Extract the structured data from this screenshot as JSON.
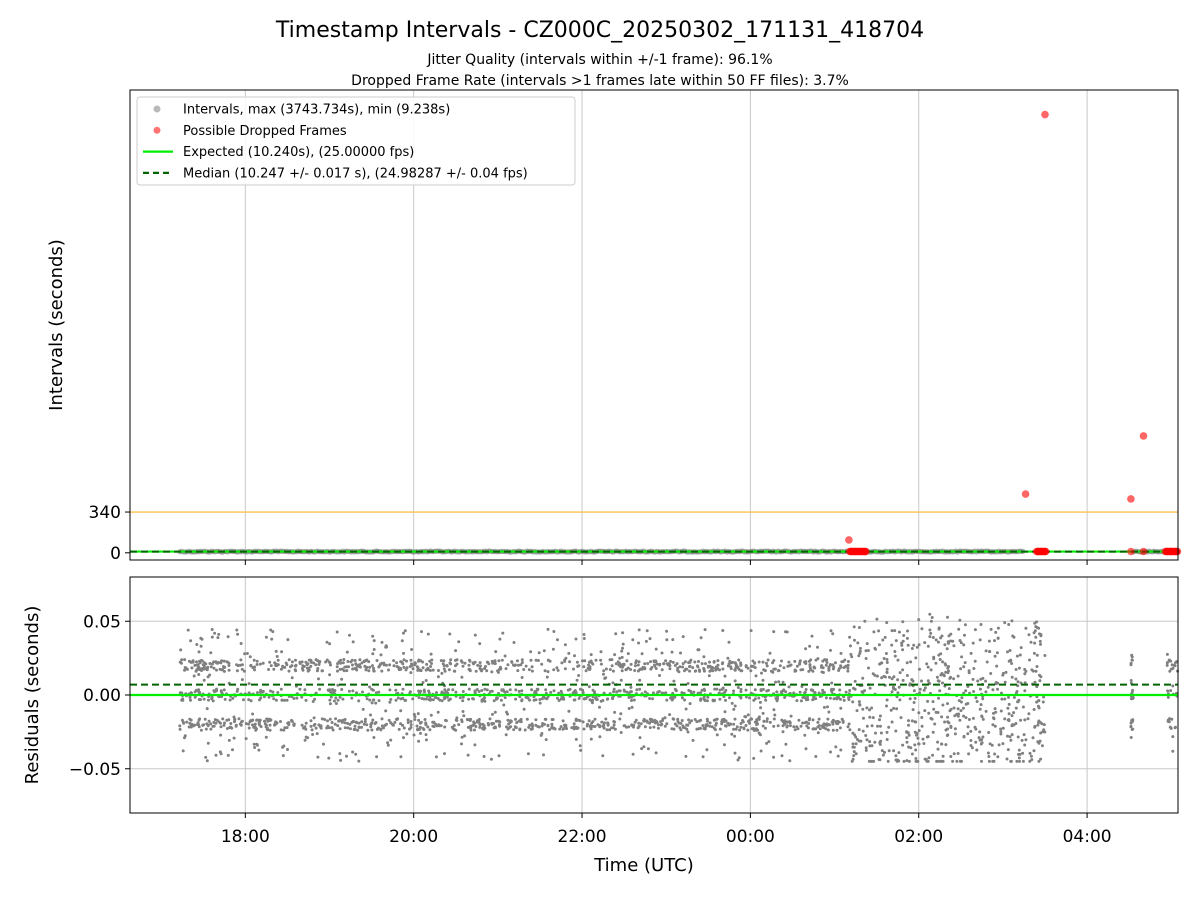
{
  "figure": {
    "title": "Timestamp Intervals - CZ000C_20250302_171131_418704",
    "subtitle1": "Jitter Quality (intervals within +/-1 frame): 96.1%",
    "subtitle2": "Dropped Frame Rate (intervals >1 frames late within 50 FF files): 3.7%"
  },
  "chart_data": [
    {
      "type": "scatter",
      "panel": "top",
      "ylabel": "Intervals (seconds)",
      "xlim_hours": [
        16.63,
        29.08
      ],
      "ylim": [
        -60,
        3860
      ],
      "yticks": [
        0,
        340
      ],
      "grid": "vertical",
      "legend_position": "top-left",
      "threshold_line": {
        "y": 340,
        "color": "#ffc04d"
      },
      "legend": [
        {
          "label": "Intervals, max (3743.734s), min (9.238s)",
          "kind": "marker",
          "color": "#808080"
        },
        {
          "label": "Possible Dropped Frames",
          "kind": "marker",
          "color": "#ff0000"
        },
        {
          "label": "Expected (10.240s), (25.00000 fps)",
          "kind": "line",
          "color": "#00ee00"
        },
        {
          "label": "Median (10.247 +/- 0.017 s), (24.98287 +/- 0.04 fps)",
          "kind": "dashed",
          "color": "#006400"
        }
      ],
      "expected": 10.24,
      "median": 10.247,
      "normal_segments": [
        {
          "start_hour": 17.22,
          "end_hour": 27.25,
          "value": 10.247
        },
        {
          "start_hour": 28.55,
          "end_hour": 28.67,
          "value": 10.247
        },
        {
          "start_hour": 28.68,
          "end_hour": 29.08,
          "value": 10.247
        }
      ],
      "dropped_points": [
        {
          "x_hour": 25.17,
          "y": 108
        },
        {
          "x_hour": 25.2,
          "y": 11
        },
        {
          "x_hour": 25.24,
          "y": 11
        },
        {
          "x_hour": 25.28,
          "y": 11
        },
        {
          "x_hour": 25.32,
          "y": 11
        },
        {
          "x_hour": 25.36,
          "y": 11
        },
        {
          "x_hour": 27.27,
          "y": 490
        },
        {
          "x_hour": 27.42,
          "y": 11
        },
        {
          "x_hour": 27.46,
          "y": 11
        },
        {
          "x_hour": 27.5,
          "y": 11
        },
        {
          "x_hour": 27.5,
          "y": 3655
        },
        {
          "x_hour": 28.52,
          "y": 450
        },
        {
          "x_hour": 28.52,
          "y": 11
        },
        {
          "x_hour": 28.67,
          "y": 975
        },
        {
          "x_hour": 28.67,
          "y": 11
        },
        {
          "x_hour": 28.95,
          "y": 11
        },
        {
          "x_hour": 29.0,
          "y": 11
        },
        {
          "x_hour": 29.05,
          "y": 11
        }
      ]
    },
    {
      "type": "scatter",
      "panel": "bottom",
      "xlabel": "Time (UTC)",
      "ylabel": "Residuals (seconds)",
      "xlim_hours": [
        16.63,
        29.08
      ],
      "ylim": [
        -0.08,
        0.08
      ],
      "xticks": [
        {
          "hour": 18,
          "label": "18:00"
        },
        {
          "hour": 20,
          "label": "20:00"
        },
        {
          "hour": 22,
          "label": "22:00"
        },
        {
          "hour": 24,
          "label": "00:00"
        },
        {
          "hour": 26,
          "label": "02:00"
        },
        {
          "hour": 28,
          "label": "04:00"
        }
      ],
      "yticks": [
        {
          "value": 0.05,
          "label": "0.05"
        },
        {
          "value": 0.0,
          "label": "0.00"
        },
        {
          "value": -0.05,
          "label": "−0.05"
        }
      ],
      "grid": "both",
      "expected_line": 0.0,
      "median_line": 0.007,
      "residual_bands": [
        -0.04,
        -0.02,
        0.0,
        0.02,
        0.04
      ],
      "residual_segments": [
        {
          "start_hour": 17.22,
          "end_hour": 25.2,
          "spread": 0.045
        },
        {
          "start_hour": 25.2,
          "end_hour": 27.5,
          "spread": 0.06
        },
        {
          "start_hour": 28.52,
          "end_hour": 28.55,
          "spread": 0.03
        },
        {
          "start_hour": 28.95,
          "end_hour": 29.08,
          "spread": 0.04
        }
      ],
      "point_color": "#808080"
    }
  ]
}
